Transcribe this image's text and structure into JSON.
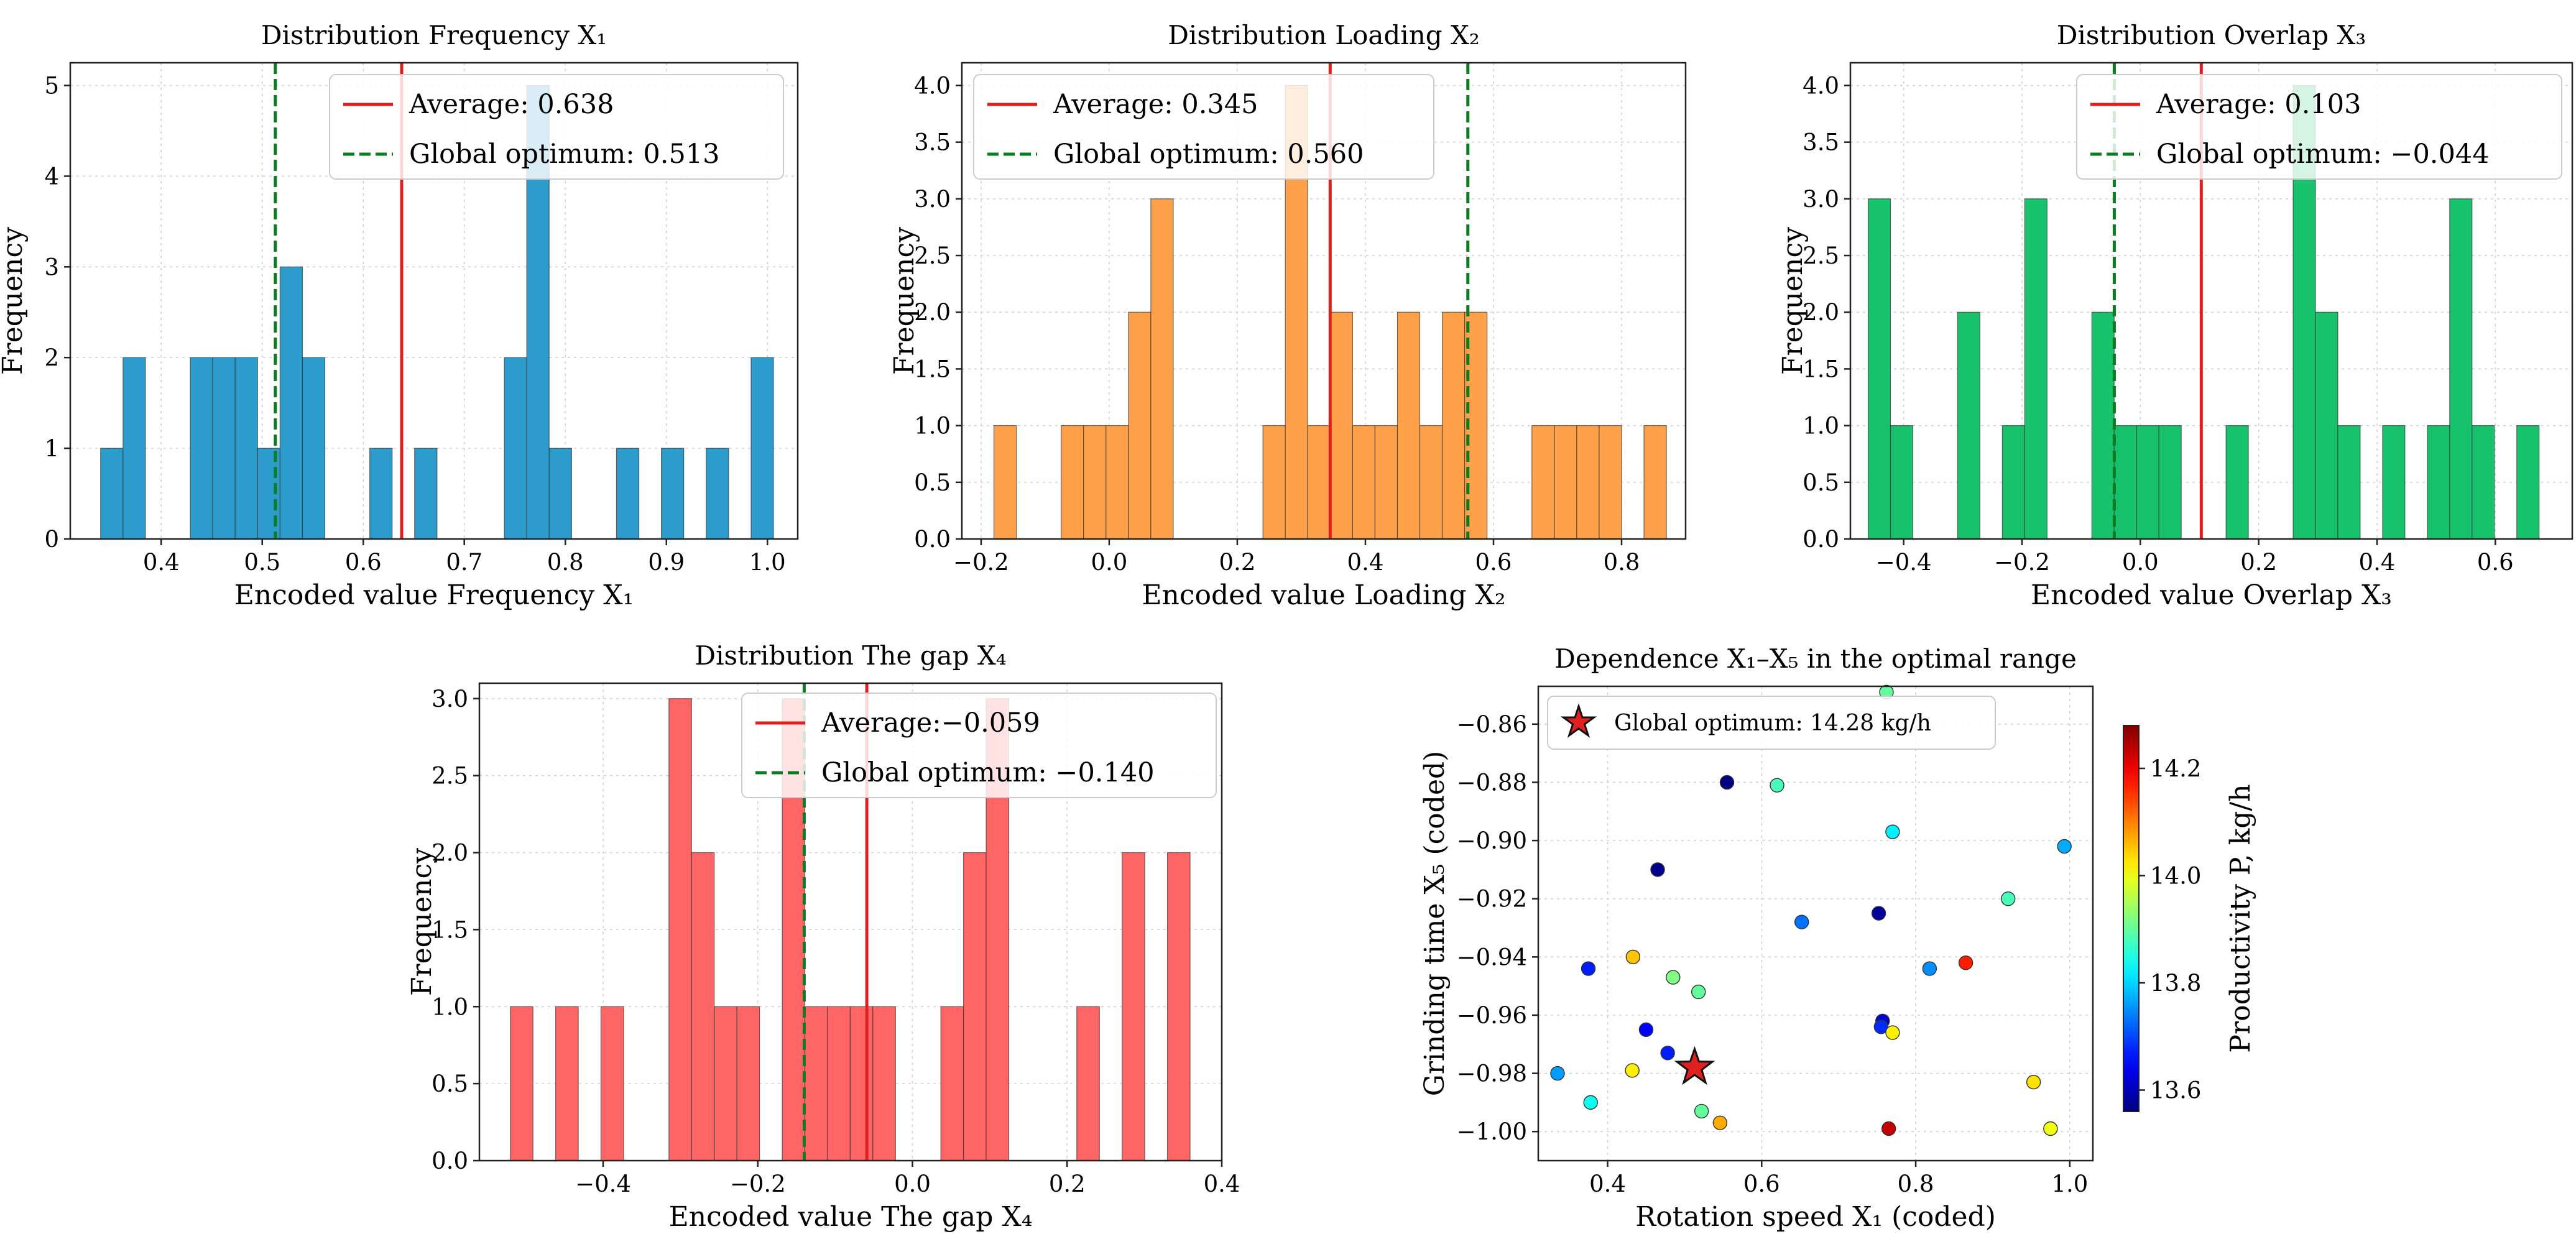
{
  "chart_data": [
    {
      "type": "histogram",
      "title": "Distribution Frequency X₁",
      "xlabel": "Encoded value Frequency X₁",
      "ylabel": "Frequency",
      "xlim": [
        0.31,
        1.03
      ],
      "ylim": [
        0,
        5.25
      ],
      "xticks": [
        0.4,
        0.5,
        0.6,
        0.7,
        0.8,
        0.9,
        1.0
      ],
      "xtick_labels": [
        "0.4",
        "0.5",
        "0.6",
        "0.7",
        "0.8",
        "0.9",
        "1.0"
      ],
      "yticks": [
        0,
        1,
        2,
        3,
        4,
        5
      ],
      "ytick_labels": [
        "0",
        "1",
        "2",
        "3",
        "4",
        "5"
      ],
      "bin_edges": [
        0.34,
        0.3622,
        0.3844,
        0.4066,
        0.4288,
        0.451,
        0.4732,
        0.4954,
        0.5176,
        0.5398,
        0.562,
        0.5842,
        0.6064,
        0.6286,
        0.6508,
        0.673,
        0.6952,
        0.7174,
        0.7396,
        0.7618,
        0.784,
        0.8062,
        0.8284,
        0.8506,
        0.8728,
        0.895,
        0.9172,
        0.9394,
        0.9616,
        0.9838,
        1.006
      ],
      "counts": [
        1,
        2,
        0,
        0,
        2,
        2,
        2,
        1,
        3,
        2,
        0,
        0,
        1,
        0,
        1,
        0,
        0,
        0,
        2,
        5,
        1,
        0,
        0,
        1,
        0,
        1,
        0,
        1,
        0,
        2
      ],
      "color": "#2b9ccc",
      "vlines": [
        {
          "label": "Average: 0.638",
          "x": 0.638,
          "color": "#e01f1f",
          "style": "solid"
        },
        {
          "label": "Global optimum: 0.513",
          "x": 0.513,
          "color": "#0a7d22",
          "style": "dashed"
        }
      ],
      "legend_position": "upper right"
    },
    {
      "type": "histogram",
      "title": "Distribution Loading X₂",
      "xlabel": "Encoded value Loading X₂",
      "ylabel": "Frequency",
      "xlim": [
        -0.23,
        0.9
      ],
      "ylim": [
        0,
        4.2
      ],
      "xticks": [
        -0.2,
        0.0,
        0.2,
        0.4,
        0.6,
        0.8
      ],
      "xtick_labels": [
        "−0.2",
        "0.0",
        "0.2",
        "0.4",
        "0.6",
        "0.8"
      ],
      "yticks": [
        0.0,
        0.5,
        1.0,
        1.5,
        2.0,
        2.5,
        3.0,
        3.5,
        4.0
      ],
      "ytick_labels": [
        "0.0",
        "0.5",
        "1.0",
        "1.5",
        "2.0",
        "2.5",
        "3.0",
        "3.5",
        "4.0"
      ],
      "bin_edges": [
        -0.18,
        -0.145,
        -0.11,
        -0.075,
        -0.04,
        -0.005,
        0.03,
        0.065,
        0.1,
        0.135,
        0.17,
        0.205,
        0.24,
        0.275,
        0.31,
        0.345,
        0.38,
        0.415,
        0.45,
        0.485,
        0.52,
        0.555,
        0.59,
        0.625,
        0.66,
        0.695,
        0.73,
        0.765,
        0.8,
        0.835,
        0.87
      ],
      "counts": [
        1,
        0,
        0,
        1,
        1,
        1,
        2,
        3,
        0,
        0,
        0,
        0,
        1,
        4,
        1,
        2,
        1,
        1,
        2,
        1,
        2,
        2,
        0,
        0,
        1,
        1,
        1,
        1,
        0,
        1
      ],
      "color": "#ffa14a",
      "vlines": [
        {
          "label": "Average: 0.345",
          "x": 0.345,
          "color": "#e01f1f",
          "style": "solid"
        },
        {
          "label": "Global optimum: 0.560",
          "x": 0.56,
          "color": "#0a7d22",
          "style": "dashed"
        }
      ],
      "legend_position": "upper left"
    },
    {
      "type": "histogram",
      "title": "Distribution Overlap X₃",
      "xlabel": "Encoded value Overlap X₃",
      "ylabel": "Frequency",
      "xlim": [
        -0.49,
        0.73
      ],
      "ylim": [
        0,
        4.2
      ],
      "xticks": [
        -0.4,
        -0.2,
        0.0,
        0.2,
        0.4,
        0.6
      ],
      "xtick_labels": [
        "−0.4",
        "−0.2",
        "0.0",
        "0.2",
        "0.4",
        "0.6"
      ],
      "yticks": [
        0.0,
        0.5,
        1.0,
        1.5,
        2.0,
        2.5,
        3.0,
        3.5,
        4.0
      ],
      "ytick_labels": [
        "0.0",
        "0.5",
        "1.0",
        "1.5",
        "2.0",
        "2.5",
        "3.0",
        "3.5",
        "4.0"
      ],
      "bin_edges": [
        -0.46,
        -0.4222,
        -0.3844,
        -0.3466,
        -0.3088,
        -0.271,
        -0.2332,
        -0.1954,
        -0.1576,
        -0.1198,
        -0.082,
        -0.0442,
        -0.0064,
        0.0314,
        0.0692,
        0.107,
        0.1448,
        0.1826,
        0.2204,
        0.2582,
        0.296,
        0.3338,
        0.3716,
        0.4094,
        0.4472,
        0.485,
        0.5228,
        0.5606,
        0.5984,
        0.6362,
        0.674
      ],
      "counts": [
        3,
        1,
        0,
        0,
        2,
        0,
        1,
        3,
        0,
        0,
        2,
        1,
        1,
        1,
        0,
        0,
        1,
        0,
        0,
        4,
        2,
        1,
        0,
        1,
        0,
        1,
        3,
        1,
        0,
        1
      ],
      "color": "#18c16b",
      "vlines": [
        {
          "label": "Average: 0.103",
          "x": 0.103,
          "color": "#e01f1f",
          "style": "solid"
        },
        {
          "label": "Global optimum: −0.044",
          "x": -0.044,
          "color": "#0a7d22",
          "style": "dashed"
        }
      ],
      "legend_position": "upper right"
    },
    {
      "type": "histogram",
      "title": "Distribution The gap X₄",
      "xlabel": "Encoded value The gap X₄",
      "ylabel": "Frequency",
      "xlim": [
        -0.56,
        0.4
      ],
      "ylim": [
        0,
        3.1
      ],
      "xticks": [
        -0.4,
        -0.2,
        0.0,
        0.2,
        0.4
      ],
      "xtick_labels": [
        "−0.4",
        "−0.2",
        "0.0",
        "0.2",
        "0.4"
      ],
      "yticks": [
        0.0,
        0.5,
        1.0,
        1.5,
        2.0,
        2.5,
        3.0
      ],
      "ytick_labels": [
        "0.0",
        "0.5",
        "1.0",
        "1.5",
        "2.0",
        "2.5",
        "3.0"
      ],
      "bin_edges": [
        -0.52,
        -0.4907,
        -0.4614,
        -0.4321,
        -0.4028,
        -0.3735,
        -0.3442,
        -0.3149,
        -0.2856,
        -0.2563,
        -0.227,
        -0.1977,
        -0.1684,
        -0.1391,
        -0.1098,
        -0.0805,
        -0.0512,
        -0.0219,
        0.0074,
        0.0367,
        0.066,
        0.0953,
        0.1246,
        0.1539,
        0.1832,
        0.2125,
        0.2418,
        0.2711,
        0.3004,
        0.3297,
        0.359
      ],
      "counts": [
        1,
        0,
        1,
        0,
        1,
        0,
        0,
        3,
        2,
        1,
        1,
        0,
        3,
        1,
        1,
        1,
        1,
        0,
        0,
        1,
        2,
        3,
        0,
        0,
        0,
        1,
        0,
        2,
        0,
        2
      ],
      "color": "#ff6565",
      "vlines": [
        {
          "label": "Average:−0.059",
          "x": -0.059,
          "color": "#e01f1f",
          "style": "solid"
        },
        {
          "label": "Global optimum: −0.140",
          "x": -0.14,
          "color": "#0a7d22",
          "style": "dashed"
        }
      ],
      "legend_position": "upper right"
    },
    {
      "type": "scatter",
      "title": "Dependence  X₁–X₅  in the optimal range",
      "xlabel": "Rotation speed X₁ (coded)",
      "ylabel": "Grinding time X₅ (coded)",
      "xlim": [
        0.31,
        1.03
      ],
      "ylim": [
        -1.01,
        -0.847
      ],
      "xticks": [
        0.4,
        0.6,
        0.8,
        1.0
      ],
      "xtick_labels": [
        "0.4",
        "0.6",
        "0.8",
        "1.0"
      ],
      "yticks": [
        -1.0,
        -0.98,
        -0.96,
        -0.94,
        -0.92,
        -0.9,
        -0.88,
        -0.86
      ],
      "ytick_labels": [
        "−1.00",
        "−0.98",
        "−0.96",
        "−0.94",
        "−0.92",
        "−0.90",
        "−0.88",
        "−0.86"
      ],
      "colorbar": {
        "label": "Productivity P, kg/h",
        "min": 13.56,
        "max": 14.28,
        "ticks": [
          13.6,
          13.8,
          14.0,
          14.2
        ],
        "tick_labels": [
          "13.6",
          "13.8",
          "14.0",
          "14.2"
        ],
        "colormap": "jet"
      },
      "points": [
        {
          "x": 0.762,
          "y": -0.849,
          "p": 13.9
        },
        {
          "x": 0.555,
          "y": -0.88,
          "p": 13.56
        },
        {
          "x": 0.62,
          "y": -0.881,
          "p": 13.88
        },
        {
          "x": 0.465,
          "y": -0.91,
          "p": 13.57
        },
        {
          "x": 0.77,
          "y": -0.897,
          "p": 13.82
        },
        {
          "x": 0.993,
          "y": -0.902,
          "p": 13.77
        },
        {
          "x": 0.752,
          "y": -0.925,
          "p": 13.58
        },
        {
          "x": 0.92,
          "y": -0.92,
          "p": 13.88
        },
        {
          "x": 0.652,
          "y": -0.928,
          "p": 13.73
        },
        {
          "x": 0.433,
          "y": -0.94,
          "p": 14.05
        },
        {
          "x": 0.375,
          "y": -0.944,
          "p": 13.67
        },
        {
          "x": 0.485,
          "y": -0.947,
          "p": 13.92
        },
        {
          "x": 0.518,
          "y": -0.952,
          "p": 13.9
        },
        {
          "x": 0.818,
          "y": -0.944,
          "p": 13.75
        },
        {
          "x": 0.865,
          "y": -0.942,
          "p": 14.17
        },
        {
          "x": 0.45,
          "y": -0.965,
          "p": 13.65
        },
        {
          "x": 0.757,
          "y": -0.962,
          "p": 13.62
        },
        {
          "x": 0.755,
          "y": -0.964,
          "p": 13.68
        },
        {
          "x": 0.77,
          "y": -0.966,
          "p": 14.02
        },
        {
          "x": 0.478,
          "y": -0.973,
          "p": 13.67
        },
        {
          "x": 0.335,
          "y": -0.98,
          "p": 13.76
        },
        {
          "x": 0.432,
          "y": -0.979,
          "p": 14.02
        },
        {
          "x": 0.378,
          "y": -0.99,
          "p": 13.84
        },
        {
          "x": 0.522,
          "y": -0.993,
          "p": 13.9
        },
        {
          "x": 0.546,
          "y": -0.997,
          "p": 14.07
        },
        {
          "x": 0.765,
          "y": -0.999,
          "p": 14.23
        },
        {
          "x": 0.953,
          "y": -0.983,
          "p": 14.03
        },
        {
          "x": 0.975,
          "y": -0.999,
          "p": 14.0
        }
      ],
      "star": {
        "label": "Global optimum: 14.28 kg/h",
        "x": 0.513,
        "y": -0.978,
        "color": "#e01f1f"
      },
      "legend_position": "upper left"
    }
  ]
}
